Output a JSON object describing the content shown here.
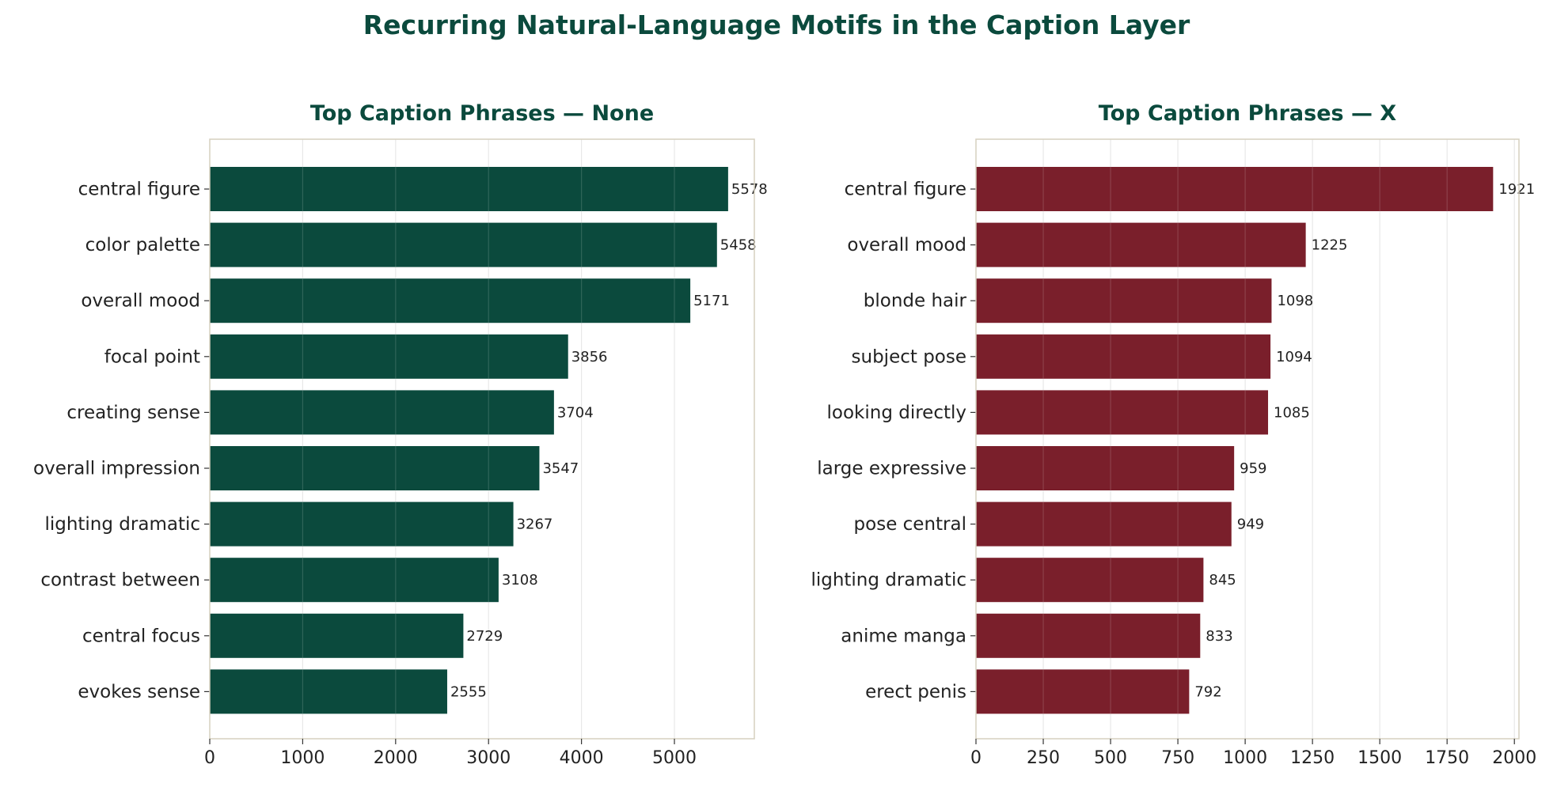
{
  "suptitle": "Recurring Natural-Language Motifs in the Caption Layer",
  "colors": {
    "title": "#0b4a3d",
    "frame": "#d6d0bf",
    "grid": "#e8e8e8"
  },
  "chart_data": [
    {
      "type": "bar",
      "orientation": "horizontal",
      "title": "Top Caption Phrases — None",
      "categories": [
        "central figure",
        "color palette",
        "overall mood",
        "focal point",
        "creating sense",
        "overall impression",
        "lighting dramatic",
        "contrast between",
        "central focus",
        "evokes sense"
      ],
      "values": [
        5578,
        5458,
        5171,
        3856,
        3704,
        3547,
        3267,
        3108,
        2729,
        2555
      ],
      "xticks": [
        0,
        1000,
        2000,
        3000,
        4000,
        5000
      ],
      "xlim": [
        0,
        5860
      ],
      "color": "#0b4a3d",
      "grid": "vertical"
    },
    {
      "type": "bar",
      "orientation": "horizontal",
      "title": "Top Caption Phrases — X",
      "categories": [
        "central figure",
        "overall mood",
        "blonde hair",
        "subject pose",
        "looking directly",
        "large expressive",
        "pose central",
        "lighting dramatic",
        "anime manga",
        "erect penis"
      ],
      "values": [
        1921,
        1225,
        1098,
        1094,
        1085,
        959,
        949,
        845,
        833,
        792
      ],
      "xticks": [
        0,
        250,
        500,
        750,
        1000,
        1250,
        1500,
        1750,
        2000
      ],
      "xlim": [
        0,
        2017
      ],
      "color": "#7a1f2b",
      "grid": "vertical"
    }
  ]
}
